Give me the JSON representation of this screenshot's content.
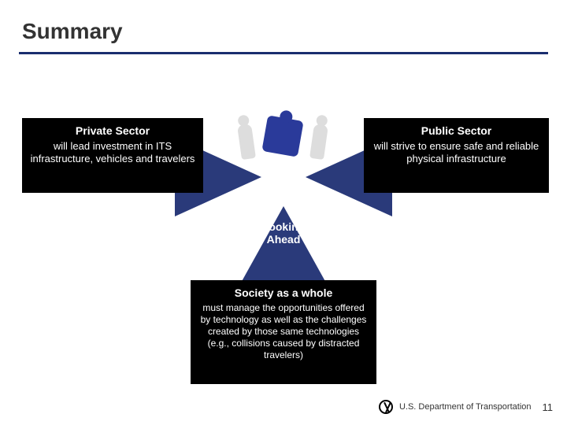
{
  "title": "Summary",
  "colors": {
    "rule": "#1a2e6e",
    "triangle": "#2a3a7a",
    "box_bg": "#000000",
    "box_text": "#ffffff",
    "page_bg": "#ffffff"
  },
  "left_box": {
    "header": "Private Sector",
    "body": "will lead investment in ITS infrastructure, vehicles and travelers"
  },
  "right_box": {
    "header": "Public Sector",
    "body": "will strive to ensure safe and reliable physical infrastructure"
  },
  "bottom_box": {
    "header": "Society as a whole",
    "body": "must manage the opportunities offered by technology as well as the challenges created by those same technologies (e.g., collisions caused by distracted travelers)"
  },
  "center_label": "Looking Ahead",
  "footer": {
    "org": "U.S. Department of Transportation",
    "page_number": "11"
  }
}
